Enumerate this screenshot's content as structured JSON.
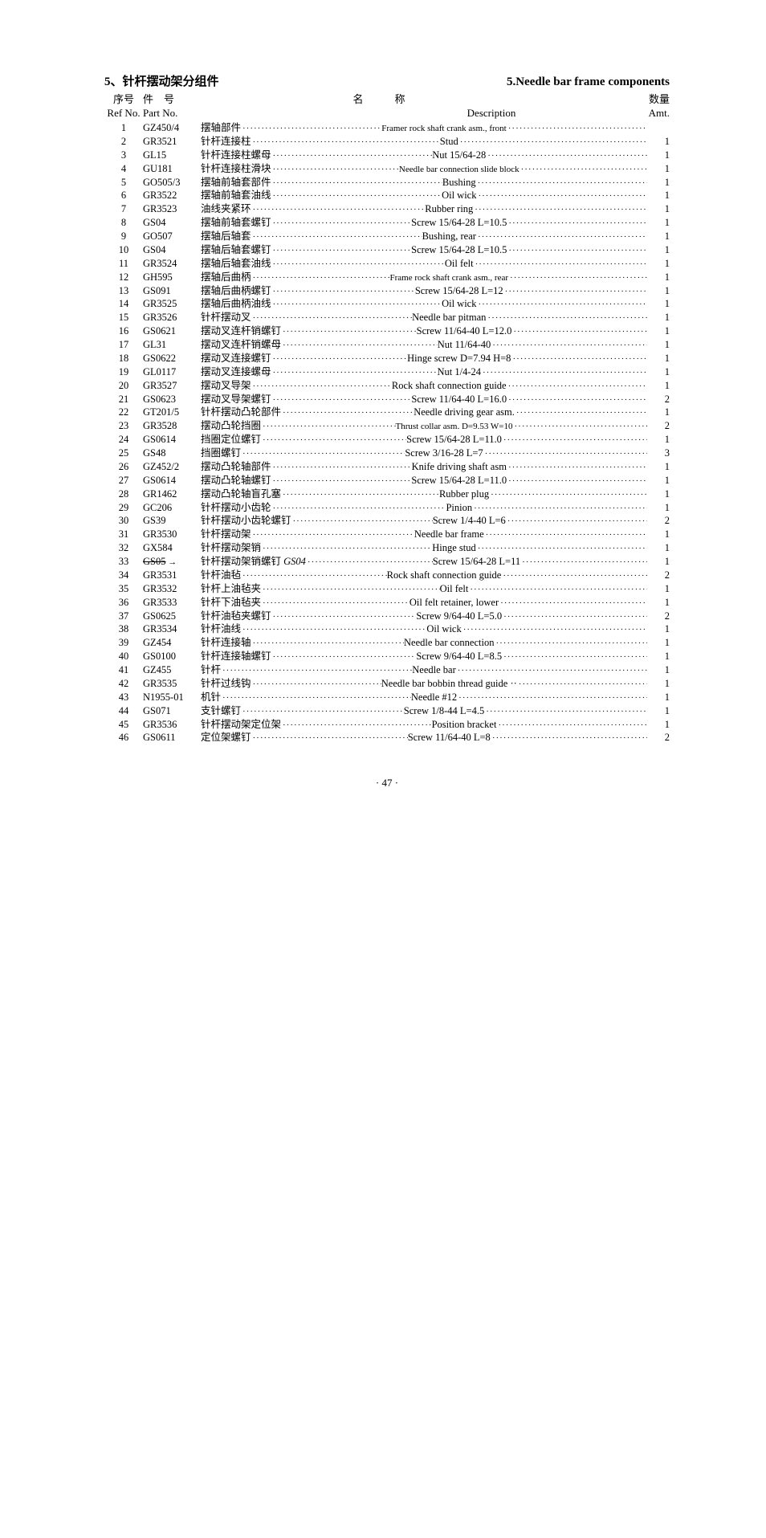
{
  "title_cn": "5、针杆摆动架分组件",
  "title_en": "5.Needle bar frame components",
  "headers_cn": {
    "ref": "序号",
    "partno": "件　号",
    "name": "名　　　称",
    "amt": "数量"
  },
  "headers_en": {
    "ref": "Ref No.",
    "partno": "Part No.",
    "desc": "Description",
    "amt": "Amt."
  },
  "page_number": "· 47 ·",
  "rows": [
    {
      "ref": "1",
      "pn": "GZ450/4",
      "cn": "摆轴部件",
      "desc": "Framer rock shaft crank asm., front",
      "amt": "",
      "small": true
    },
    {
      "ref": "2",
      "pn": "GR3521",
      "cn": "针杆连接柱",
      "desc": "Stud",
      "amt": "1"
    },
    {
      "ref": "3",
      "pn": "GL15",
      "cn": "针杆连接柱螺母",
      "desc": "Nut 15/64-28",
      "amt": "1"
    },
    {
      "ref": "4",
      "pn": "GU181",
      "cn": "针杆连接柱滑块",
      "desc": "Needle bar connection slide block",
      "amt": "1",
      "small": true
    },
    {
      "ref": "5",
      "pn": "GO505/3",
      "cn": "摆轴前轴套部件",
      "desc": "Bushing",
      "amt": "1"
    },
    {
      "ref": "6",
      "pn": "GR3522",
      "cn": "摆轴前轴套油线",
      "desc": "Oil wick",
      "amt": "1"
    },
    {
      "ref": "7",
      "pn": "GR3523",
      "cn": "油线夹紧环",
      "desc": "Rubber ring",
      "amt": "1"
    },
    {
      "ref": "8",
      "pn": "GS04",
      "cn": "摆轴前轴套螺钉",
      "desc": "Screw 15/64-28 L=10.5",
      "amt": "1"
    },
    {
      "ref": "9",
      "pn": "GO507",
      "cn": "摆轴后轴套",
      "desc": "Bushing, rear",
      "amt": "1"
    },
    {
      "ref": "10",
      "pn": "GS04",
      "cn": "摆轴后轴套螺钉",
      "desc": "Screw 15/64-28 L=10.5",
      "amt": "1"
    },
    {
      "ref": "11",
      "pn": "GR3524",
      "cn": "摆轴后轴套油线",
      "desc": "Oil felt",
      "amt": "1"
    },
    {
      "ref": "12",
      "pn": "GH595",
      "cn": "摆轴后曲柄",
      "desc": "Frame rock shaft crank asm., rear",
      "amt": "1",
      "small": true
    },
    {
      "ref": "13",
      "pn": "GS091",
      "cn": "摆轴后曲柄螺钉",
      "desc": "Screw 15/64-28 L=12",
      "amt": "1"
    },
    {
      "ref": "14",
      "pn": "GR3525",
      "cn": "摆轴后曲柄油线",
      "desc": "Oil wick",
      "amt": "1"
    },
    {
      "ref": "15",
      "pn": "GR3526",
      "cn": "针杆摆动叉",
      "desc": "Needle bar pitman",
      "amt": "1"
    },
    {
      "ref": "16",
      "pn": "GS0621",
      "cn": "摆动叉连杆销螺钉",
      "desc": "Screw 11/64-40 L=12.0",
      "amt": "1"
    },
    {
      "ref": "17",
      "pn": "GL31",
      "cn": "摆动叉连杆销螺母",
      "desc": "Nut 11/64-40",
      "amt": "1"
    },
    {
      "ref": "18",
      "pn": "GS0622",
      "cn": "摆动叉连接螺钉",
      "desc": "Hinge screw D=7.94 H=8",
      "amt": "1"
    },
    {
      "ref": "19",
      "pn": "GL0117",
      "cn": "摆动叉连接螺母",
      "desc": "Nut 1/4-24",
      "amt": "1"
    },
    {
      "ref": "20",
      "pn": "GR3527",
      "cn": "摆动叉导架",
      "desc": "Rock shaft connection guide",
      "amt": "1"
    },
    {
      "ref": "21",
      "pn": "GS0623",
      "cn": "摆动叉导架螺钉",
      "desc": "Screw 11/64-40 L=16.0",
      "amt": "2"
    },
    {
      "ref": "22",
      "pn": "GT201/5",
      "cn": "针杆摆动凸轮部件",
      "desc": "Needle driving gear asm.",
      "amt": "1"
    },
    {
      "ref": "23",
      "pn": "GR3528",
      "cn": "摆动凸轮挡圈",
      "desc": "Thrust collar asm. D=9.53 W=10",
      "amt": "2",
      "small": true
    },
    {
      "ref": "24",
      "pn": "GS0614",
      "cn": "挡圈定位螺钉",
      "desc": "Screw 15/64-28 L=11.0",
      "amt": "1"
    },
    {
      "ref": "25",
      "pn": "GS48",
      "cn": "挡圈螺钉",
      "desc": "Screw 3/16-28 L=7",
      "amt": "3"
    },
    {
      "ref": "26",
      "pn": "GZ452/2",
      "cn": "摆动凸轮轴部件",
      "desc": "Knife driving shaft asm",
      "amt": "1"
    },
    {
      "ref": "27",
      "pn": "GS0614",
      "cn": "摆动凸轮轴螺钉",
      "desc": "Screw 15/64-28 L=11.0",
      "amt": "1"
    },
    {
      "ref": "28",
      "pn": "GR1462",
      "cn": "摆动凸轮轴盲孔塞",
      "desc": "Rubber plug",
      "amt": "1"
    },
    {
      "ref": "29",
      "pn": "GC206",
      "cn": "针杆摆动小齿轮",
      "desc": "Pinion",
      "amt": "1"
    },
    {
      "ref": "30",
      "pn": "GS39",
      "cn": "针杆摆动小齿轮螺钉",
      "desc": "Screw 1/4-40 L=6",
      "amt": "2"
    },
    {
      "ref": "31",
      "pn": "GR3530",
      "cn": "针杆摆动架",
      "desc": "Needle bar frame",
      "amt": "1"
    },
    {
      "ref": "32",
      "pn": "GX584",
      "cn": "针杆摆动架销",
      "desc": "Hinge stud",
      "amt": "1"
    },
    {
      "ref": "33",
      "pn": "GS05 →",
      "cn": "针杆摆动架销螺钉 GS04",
      "desc": "Screw 15/64-28 L=11",
      "amt": "1",
      "strike": true,
      "hand": true
    },
    {
      "ref": "34",
      "pn": "GR3531",
      "cn": "针杆油毡",
      "desc": "Rock shaft connection guide",
      "amt": "2"
    },
    {
      "ref": "35",
      "pn": "GR3532",
      "cn": "针杆上油毡夹",
      "desc": "Oil felt",
      "amt": "1"
    },
    {
      "ref": "36",
      "pn": "GR3533",
      "cn": "针杆下油毡夹",
      "desc": "Oil felt retainer, lower",
      "amt": "1"
    },
    {
      "ref": "37",
      "pn": "GS0625",
      "cn": "针杆油毡夹螺钉",
      "desc": "Screw 9/64-40 L=5.0",
      "amt": "2"
    },
    {
      "ref": "38",
      "pn": "GR3534",
      "cn": "针杆油线",
      "desc": "Oil wick",
      "amt": "1"
    },
    {
      "ref": "39",
      "pn": "GZ454",
      "cn": "针杆连接轴",
      "desc": "Needle bar connection",
      "amt": "1"
    },
    {
      "ref": "40",
      "pn": "GS0100",
      "cn": "针杆连接轴螺钉",
      "desc": "Screw 9/64-40 L=8.5",
      "amt": "1"
    },
    {
      "ref": "41",
      "pn": "GZ455",
      "cn": "针杆",
      "desc": "Needle bar",
      "amt": "1"
    },
    {
      "ref": "42",
      "pn": "GR3535",
      "cn": "针杆过线钩",
      "desc": "Needle bar bobbin thread guide ··",
      "amt": "1"
    },
    {
      "ref": "43",
      "pn": "N1955-01",
      "cn": "机针",
      "desc": "Needle #12",
      "amt": "1"
    },
    {
      "ref": "44",
      "pn": "GS071",
      "cn": "支针螺钉",
      "desc": "Screw 1/8-44 L=4.5",
      "amt": "1"
    },
    {
      "ref": "45",
      "pn": "GR3536",
      "cn": "针杆摆动架定位架",
      "desc": "Position bracket",
      "amt": "1"
    },
    {
      "ref": "46",
      "pn": "GS0611",
      "cn": "定位架螺钉",
      "desc": "Screw 11/64-40 L=8",
      "amt": "2"
    }
  ]
}
